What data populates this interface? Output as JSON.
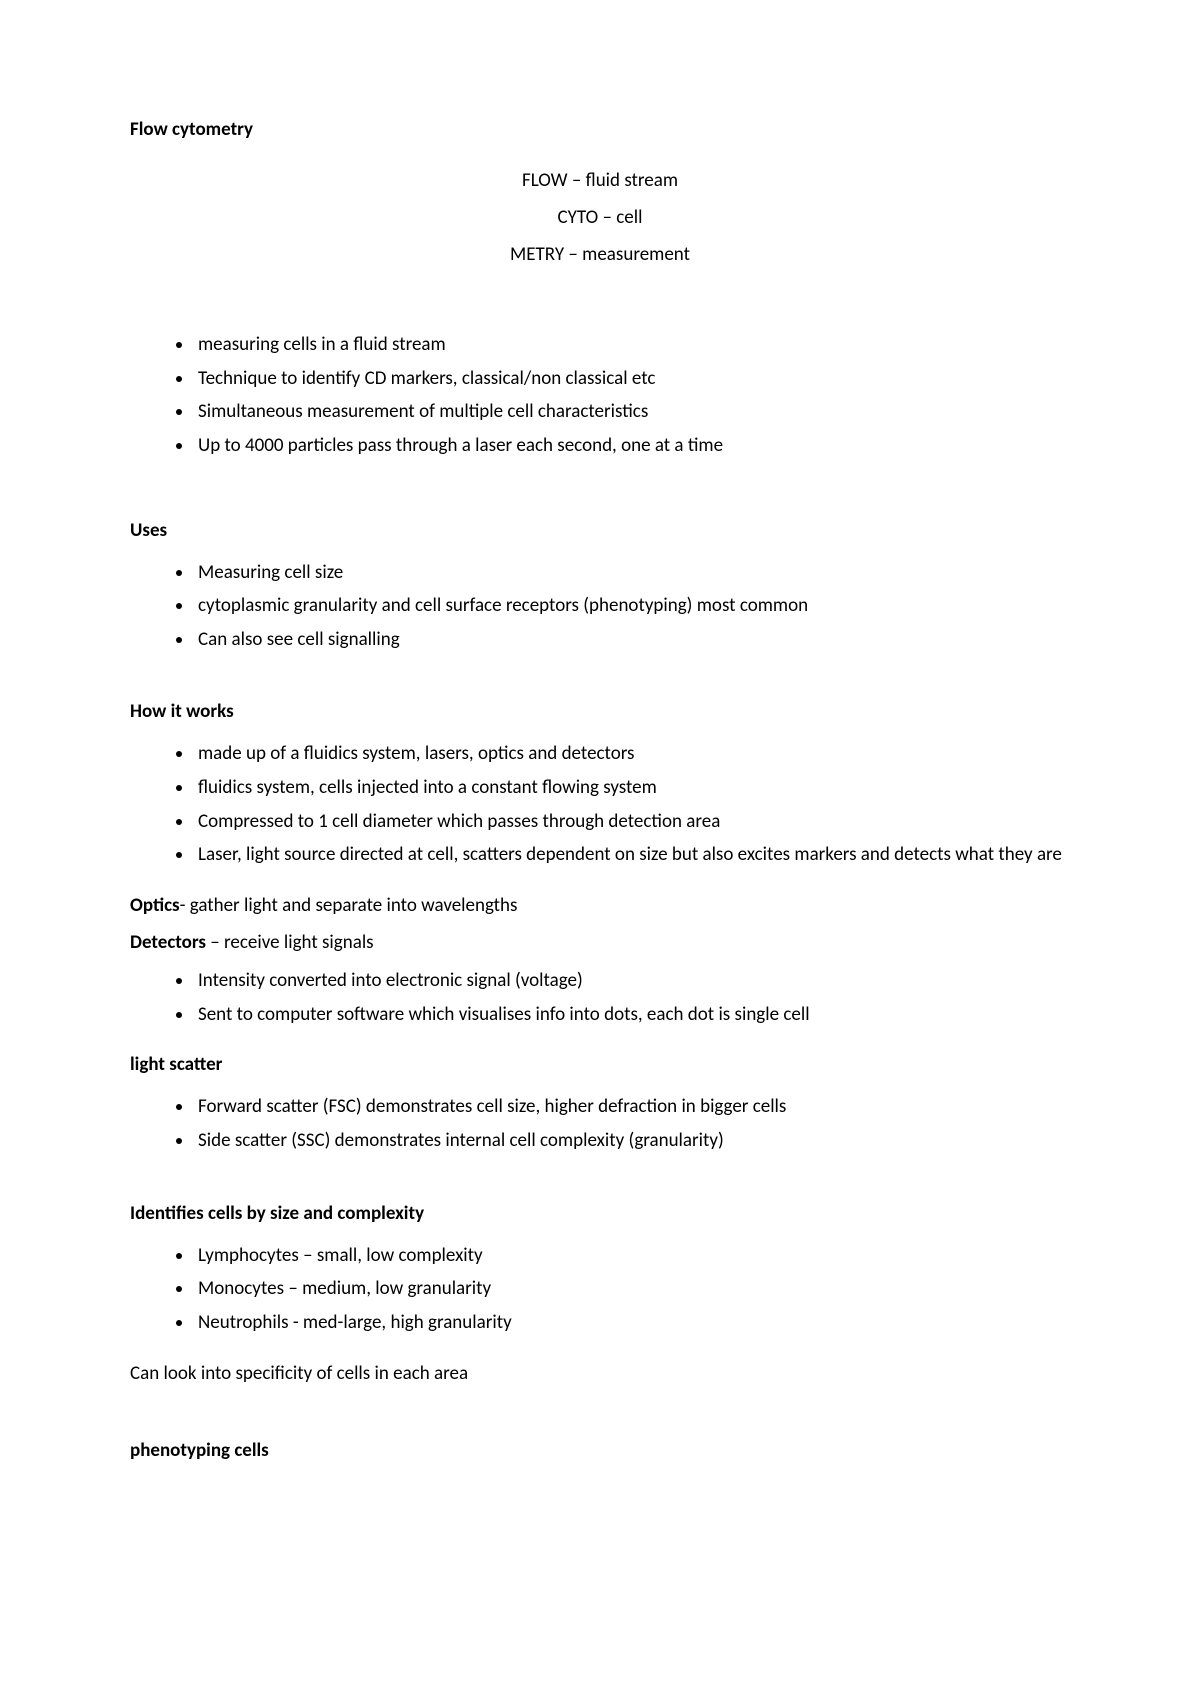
{
  "title": "Flow cytometry",
  "definitions": [
    {
      "term": "FLOW",
      "desc": "fluid stream"
    },
    {
      "term": "CYTO",
      "desc": "cell"
    },
    {
      "term": "METRY",
      "desc": "measurement"
    }
  ],
  "introBullets": [
    "measuring cells in a fluid stream",
    "Technique to identify CD markers, classical/non classical etc",
    "Simultaneous measurement of multiple cell characteristics",
    "Up to 4000 particles pass through a laser each second, one at a time"
  ],
  "uses": {
    "heading": "Uses",
    "items": [
      "Measuring cell size",
      "cytoplasmic granularity and cell surface receptors (phenotyping) most common",
      "Can also see cell signalling"
    ]
  },
  "how": {
    "heading": "How it works",
    "items": [
      "made up of a fluidics system, lasers, optics and detectors",
      "fluidics system, cells injected into a constant flowing system",
      "Compressed to 1 cell diameter which passes through detection area",
      "Laser, light source directed at cell, scatters dependent on size but also excites markers and detects what they are"
    ]
  },
  "optics": {
    "lead": "Optics",
    "rest": "- gather light and separate into wavelengths"
  },
  "detectors": {
    "lead": "Detectors",
    "rest": " – receive light signals",
    "items": [
      "Intensity converted into electronic signal (voltage)",
      "Sent to computer software which visualises info into dots, each dot is single cell"
    ]
  },
  "lightScatter": {
    "heading": "light scatter",
    "items": [
      "Forward scatter (FSC) demonstrates cell size, higher defraction in bigger cells",
      "Side scatter (SSC) demonstrates internal cell complexity (granularity)"
    ]
  },
  "identifies": {
    "heading": "Identifies cells by size and complexity",
    "items": [
      "Lymphocytes – small, low complexity",
      "Monocytes – medium, low granularity",
      "Neutrophils - med-large, high granularity"
    ],
    "footer": " Can look into specificity of cells in each area"
  },
  "phenotyping": {
    "heading": "phenotyping cells"
  }
}
